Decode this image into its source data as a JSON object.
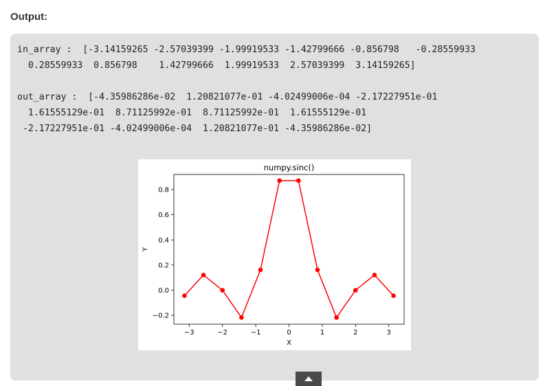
{
  "page": {
    "heading": "Output:"
  },
  "console": {
    "in_line1": "in_array :  [-3.14159265 -2.57039399 -1.99919533 -1.42799666 -0.856798   -0.28559933",
    "in_line2": "  0.28559933  0.856798    1.42799666  1.99919533  2.57039399  3.14159265]",
    "out_line1": "out_array :  [-4.35986286e-02  1.20821077e-01 -4.02499006e-04 -2.17227951e-01",
    "out_line2": "  1.61555129e-01  8.71125992e-01  8.71125992e-01  1.61555129e-01",
    "out_line3": " -2.17227951e-01 -4.02499006e-04  1.20821077e-01 -4.35986286e-02]"
  },
  "chart_data": {
    "type": "line",
    "title": "numpy.sinc()",
    "xlabel": "X",
    "ylabel": "Y",
    "x": [
      -3.14159265,
      -2.57039399,
      -1.99919533,
      -1.42799666,
      -0.856798,
      -0.28559933,
      0.28559933,
      0.856798,
      1.42799666,
      1.99919533,
      2.57039399,
      3.14159265
    ],
    "y": [
      -0.0435986286,
      0.120821077,
      -0.000402499006,
      -0.217227951,
      0.161555129,
      0.871125992,
      0.871125992,
      0.161555129,
      -0.217227951,
      -0.000402499006,
      0.120821077,
      -0.0435986286
    ],
    "xlim": [
      -3.46,
      3.46
    ],
    "ylim": [
      -0.27,
      0.92
    ],
    "xticks": [
      -3,
      -2,
      -1,
      0,
      1,
      2,
      3
    ],
    "xtick_labels": [
      "−3",
      "−2",
      "−1",
      "0",
      "1",
      "2",
      "3"
    ],
    "yticks": [
      -0.2,
      0.0,
      0.2,
      0.4,
      0.6,
      0.8
    ],
    "ytick_labels": [
      "−0.2",
      "0.0",
      "0.2",
      "0.4",
      "0.6",
      "0.8"
    ],
    "color": "#ff0000",
    "grid": false,
    "marker": "circle"
  },
  "colors": {
    "panel_background": "#e0e0e0",
    "series": "#ff0000"
  },
  "icons": {
    "scroll_top": "chevron-up-icon"
  }
}
